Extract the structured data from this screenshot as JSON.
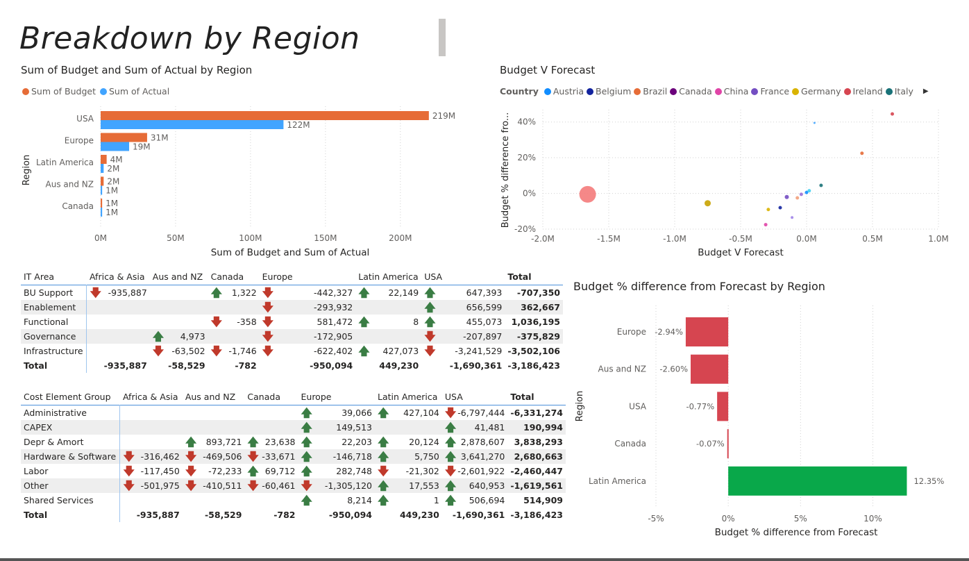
{
  "page": {
    "title": "Breakdown by Region"
  },
  "colors": {
    "budget": "#e66c37",
    "actual": "#41a4ff",
    "neg": "#d64550",
    "pos": "#09a84a",
    "up_arrow": "#3a7d44",
    "down_arrow": "#c0392b"
  },
  "icons": {
    "up": "arrow-up-icon",
    "down": "arrow-down-icon",
    "next": "chevron-right-icon"
  },
  "chart_data": [
    {
      "type": "bar",
      "orientation": "horizontal",
      "title": "Sum of Budget and Sum of Actual by Region",
      "ylabel": "Region",
      "xlabel": "Sum of Budget and Sum of Actual",
      "categories": [
        "USA",
        "Europe",
        "Latin America",
        "Aus and NZ",
        "Canada"
      ],
      "series": [
        {
          "name": "Sum of Budget",
          "values": [
            219,
            31,
            4,
            2,
            1
          ],
          "labels": [
            "219M",
            "31M",
            "4M",
            "2M",
            "1M"
          ],
          "color": "#e66c37"
        },
        {
          "name": "Sum of Actual",
          "values": [
            122,
            19,
            2,
            1,
            1
          ],
          "labels": [
            "122M",
            "19M",
            "2M",
            "1M",
            "1M"
          ],
          "color": "#41a4ff"
        }
      ],
      "xlim": [
        0,
        220
      ],
      "ticks": [
        0,
        50,
        100,
        150,
        200
      ],
      "tick_labels": [
        "0M",
        "50M",
        "100M",
        "150M",
        "200M"
      ],
      "grid": true,
      "legend": "top-left"
    },
    {
      "type": "scatter",
      "title": "Budget V Forecast",
      "xlabel": "Budget V Forecast",
      "ylabel": "Budget % difference fro...",
      "legend_title": "Country",
      "legend": "top",
      "legend_items": [
        {
          "name": "Austria",
          "color": "#118dff"
        },
        {
          "name": "Belgium",
          "color": "#12239e"
        },
        {
          "name": "Brazil",
          "color": "#e66c37"
        },
        {
          "name": "Canada",
          "color": "#6b007b"
        },
        {
          "name": "China",
          "color": "#e044a7"
        },
        {
          "name": "France",
          "color": "#744ec2"
        },
        {
          "name": "Germany",
          "color": "#d9b300"
        },
        {
          "name": "Ireland",
          "color": "#d64550"
        },
        {
          "name": "Italy",
          "color": "#197278"
        }
      ],
      "xlim": [
        -2.0,
        1.0
      ],
      "ylim": [
        -20,
        50
      ],
      "xticks": [
        -2.0,
        -1.5,
        -1.0,
        -0.5,
        0.0,
        0.5,
        1.0
      ],
      "xtick_labels": [
        "-2.0M",
        "-1.5M",
        "-1.0M",
        "-0.5M",
        "0.0M",
        "0.5M",
        "1.0M"
      ],
      "yticks": [
        -20,
        0,
        20,
        40
      ],
      "ytick_labels": [
        "-20%",
        "0%",
        "20%",
        "40%"
      ],
      "grid": true,
      "points": [
        {
          "x": -1.66,
          "y": -0.5,
          "r": 12,
          "color": "#f47b7b"
        },
        {
          "x": -0.75,
          "y": -5.5,
          "r": 4.5,
          "color": "#c8a200"
        },
        {
          "x": -0.29,
          "y": -9,
          "r": 2.5,
          "color": "#d9b300"
        },
        {
          "x": -0.2,
          "y": -8,
          "r": 2.5,
          "color": "#12239e"
        },
        {
          "x": -0.15,
          "y": -2,
          "r": 3,
          "color": "#744ec2"
        },
        {
          "x": -0.31,
          "y": -17.5,
          "r": 2.5,
          "color": "#e044a7"
        },
        {
          "x": -0.11,
          "y": -13.5,
          "r": 2,
          "color": "#a084e8"
        },
        {
          "x": -0.07,
          "y": -2.5,
          "r": 2.5,
          "color": "#f2a07b"
        },
        {
          "x": -0.04,
          "y": -0.5,
          "r": 2.5,
          "color": "#9b6fd6"
        },
        {
          "x": 0.0,
          "y": 0.5,
          "r": 2.5,
          "color": "#118dff"
        },
        {
          "x": 0.02,
          "y": 1.5,
          "r": 2.5,
          "color": "#41d0f0"
        },
        {
          "x": 0.11,
          "y": 4.5,
          "r": 2.5,
          "color": "#197278"
        },
        {
          "x": 0.06,
          "y": 39.5,
          "r": 1.5,
          "color": "#41a4ff"
        },
        {
          "x": 0.42,
          "y": 22.5,
          "r": 2.5,
          "color": "#e66c37"
        },
        {
          "x": 0.65,
          "y": 44.5,
          "r": 2.5,
          "color": "#d64550"
        }
      ]
    },
    {
      "type": "bar",
      "orientation": "horizontal",
      "title": "Budget % difference from Forecast by Region",
      "ylabel": "Region",
      "xlabel": "Budget % difference from Forecast",
      "categories": [
        "Europe",
        "Aus and NZ",
        "USA",
        "Canada",
        "Latin America"
      ],
      "values": [
        -2.94,
        -2.6,
        -0.77,
        -0.07,
        12.35
      ],
      "labels": [
        "-2.94%",
        "-2.60%",
        "-0.77%",
        "-0.07%",
        "12.35%"
      ],
      "xlim": [
        -5,
        13
      ],
      "ticks": [
        -5,
        0,
        5,
        10
      ],
      "tick_labels": [
        "-5%",
        "0%",
        "5%",
        "10%"
      ],
      "grid": true
    }
  ],
  "table1": {
    "headers": [
      "IT Area",
      "Africa & Asia",
      "Aus and NZ",
      "Canada",
      "Europe",
      "Latin America",
      "USA",
      "Total"
    ],
    "rows": [
      {
        "label": "BU Support",
        "cells": [
          [
            "dn",
            "-935,887"
          ],
          null,
          [
            "up",
            "1,322"
          ],
          [
            "dn",
            "-442,327"
          ],
          [
            "up",
            "22,149"
          ],
          [
            "up",
            "647,393"
          ]
        ],
        "total": "-707,350"
      },
      {
        "label": "Enablement",
        "cells": [
          null,
          null,
          null,
          [
            "dn",
            "-293,932"
          ],
          null,
          [
            "up",
            "656,599"
          ]
        ],
        "total": "362,667"
      },
      {
        "label": "Functional",
        "cells": [
          null,
          null,
          [
            "dn",
            "-358"
          ],
          [
            "dn",
            "581,472"
          ],
          [
            "up",
            "8"
          ],
          [
            "up",
            "455,073"
          ]
        ],
        "total": "1,036,195"
      },
      {
        "label": "Governance",
        "cells": [
          null,
          [
            "up",
            "4,973"
          ],
          null,
          [
            "dn",
            "-172,905"
          ],
          null,
          [
            "dn",
            "-207,897"
          ]
        ],
        "total": "-375,829"
      },
      {
        "label": "Infrastructure",
        "cells": [
          null,
          [
            "dn",
            "-63,502"
          ],
          [
            "dn",
            "-1,746"
          ],
          [
            "dn",
            "-622,402"
          ],
          [
            "up",
            "427,073"
          ],
          [
            "dn",
            "-3,241,529"
          ]
        ],
        "total": "-3,502,106"
      }
    ],
    "total_row": {
      "label": "Total",
      "values": [
        "-935,887",
        "-58,529",
        "-782",
        "-950,094",
        "449,230",
        "-1,690,361"
      ],
      "total": "-3,186,423"
    }
  },
  "table2": {
    "headers": [
      "Cost Element Group",
      "Africa & Asia",
      "Aus and NZ",
      "Canada",
      "Europe",
      "Latin America",
      "USA",
      "Total"
    ],
    "rows": [
      {
        "label": "Administrative",
        "cells": [
          null,
          null,
          null,
          [
            "up",
            "39,066"
          ],
          [
            "up",
            "427,104"
          ],
          [
            "dn",
            "-6,797,444"
          ]
        ],
        "total": "-6,331,274"
      },
      {
        "label": "CAPEX",
        "cells": [
          null,
          null,
          null,
          [
            "up",
            "149,513"
          ],
          null,
          [
            "up",
            "41,481"
          ]
        ],
        "total": "190,994"
      },
      {
        "label": "Depr & Amort",
        "cells": [
          null,
          [
            "up",
            "893,721"
          ],
          [
            "up",
            "23,638"
          ],
          [
            "up",
            "22,203"
          ],
          [
            "up",
            "20,124"
          ],
          [
            "up",
            "2,878,607"
          ]
        ],
        "total": "3,838,293"
      },
      {
        "label": "Hardware & Software",
        "cells": [
          [
            "dn",
            "-316,462"
          ],
          [
            "dn",
            "-469,506"
          ],
          [
            "dn",
            "-33,671"
          ],
          [
            "up",
            "-146,718"
          ],
          [
            "up",
            "5,750"
          ],
          [
            "up",
            "3,641,270"
          ]
        ],
        "total": "2,680,663"
      },
      {
        "label": "Labor",
        "cells": [
          [
            "dn",
            "-117,450"
          ],
          [
            "dn",
            "-72,233"
          ],
          [
            "up",
            "69,712"
          ],
          [
            "up",
            "282,748"
          ],
          [
            "dn",
            "-21,302"
          ],
          [
            "dn",
            "-2,601,922"
          ]
        ],
        "total": "-2,460,447"
      },
      {
        "label": "Other",
        "cells": [
          [
            "dn",
            "-501,975"
          ],
          [
            "dn",
            "-410,511"
          ],
          [
            "dn",
            "-60,461"
          ],
          [
            "dn",
            "-1,305,120"
          ],
          [
            "up",
            "17,553"
          ],
          [
            "up",
            "640,953"
          ]
        ],
        "total": "-1,619,561"
      },
      {
        "label": "Shared Services",
        "cells": [
          null,
          null,
          null,
          [
            "up",
            "8,214"
          ],
          [
            "up",
            "1"
          ],
          [
            "up",
            "506,694"
          ]
        ],
        "total": "514,909"
      }
    ],
    "total_row": {
      "label": "Total",
      "values": [
        "-935,887",
        "-58,529",
        "-782",
        "-950,094",
        "449,230",
        "-1,690,361"
      ],
      "total": "-3,186,423"
    }
  }
}
